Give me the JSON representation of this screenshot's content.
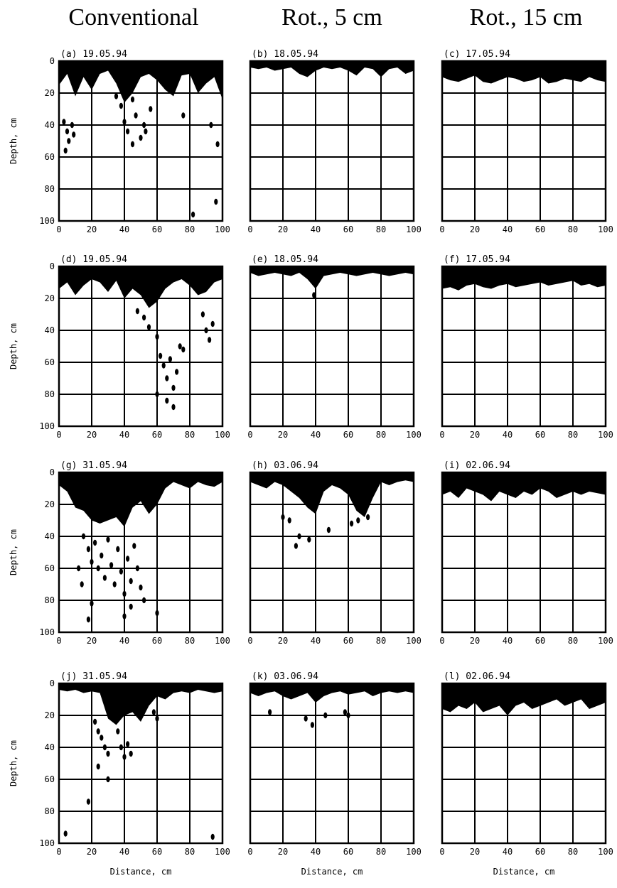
{
  "column_titles": [
    "Conventional",
    "Rot., 5 cm",
    "Rot., 15 cm"
  ],
  "chart_data": {
    "type": "heatmap",
    "description_axes": {
      "xlabel": "Distance, cm",
      "ylabel": "Depth, cm"
    },
    "xlim": [
      0,
      100
    ],
    "ylim": [
      0,
      100
    ],
    "x_ticks": [
      0,
      20,
      40,
      60,
      80,
      100
    ],
    "y_ticks": [
      0,
      20,
      40,
      60,
      80,
      100
    ],
    "panels": [
      {
        "id": "a",
        "label": "(a) 19.05.94",
        "treatment": "Conventional",
        "row": 0,
        "col": 0,
        "ylabel": "Depth, cm",
        "xlabel": "",
        "surface_depth": [
          15,
          8,
          22,
          10,
          18,
          8,
          6,
          14,
          26,
          20,
          10,
          8,
          12,
          18,
          22,
          9,
          8,
          20,
          14,
          10,
          24
        ],
        "stains": [
          [
            3,
            38
          ],
          [
            5,
            44
          ],
          [
            6,
            50
          ],
          [
            8,
            40
          ],
          [
            9,
            46
          ],
          [
            4,
            56
          ],
          [
            40,
            38
          ],
          [
            42,
            44
          ],
          [
            45,
            24
          ],
          [
            47,
            34
          ],
          [
            52,
            40
          ],
          [
            53,
            44
          ],
          [
            56,
            30
          ],
          [
            76,
            34
          ],
          [
            93,
            40
          ],
          [
            97,
            52
          ],
          [
            82,
            96
          ],
          [
            96,
            88
          ],
          [
            38,
            28
          ],
          [
            35,
            22
          ],
          [
            45,
            52
          ],
          [
            50,
            48
          ]
        ]
      },
      {
        "id": "b",
        "label": "(b) 18.05.94",
        "treatment": "Rot., 5 cm",
        "row": 0,
        "col": 1,
        "ylabel": "",
        "xlabel": "",
        "surface_depth": [
          4,
          5,
          4,
          6,
          5,
          4,
          8,
          10,
          6,
          4,
          5,
          4,
          6,
          9,
          4,
          5,
          10,
          5,
          4,
          8,
          6
        ],
        "stains": []
      },
      {
        "id": "c",
        "label": "(c) 17.05.94",
        "treatment": "Rot., 15 cm",
        "row": 0,
        "col": 2,
        "ylabel": "",
        "xlabel": "",
        "surface_depth": [
          10,
          12,
          13,
          11,
          9,
          13,
          14,
          12,
          10,
          11,
          13,
          12,
          10,
          14,
          13,
          11,
          12,
          13,
          10,
          12,
          13
        ],
        "stains": []
      },
      {
        "id": "d",
        "label": "(d) 19.05.94",
        "treatment": "Conventional",
        "row": 1,
        "col": 0,
        "ylabel": "Depth, cm",
        "xlabel": "",
        "surface_depth": [
          14,
          10,
          18,
          12,
          8,
          10,
          16,
          9,
          20,
          14,
          18,
          26,
          22,
          14,
          10,
          8,
          12,
          18,
          16,
          10,
          8
        ],
        "stains": [
          [
            48,
            28
          ],
          [
            52,
            32
          ],
          [
            55,
            38
          ],
          [
            60,
            44
          ],
          [
            62,
            56
          ],
          [
            64,
            62
          ],
          [
            66,
            70
          ],
          [
            68,
            58
          ],
          [
            70,
            76
          ],
          [
            72,
            66
          ],
          [
            74,
            50
          ],
          [
            66,
            84
          ],
          [
            88,
            30
          ],
          [
            90,
            40
          ],
          [
            92,
            46
          ],
          [
            94,
            36
          ],
          [
            60,
            80
          ],
          [
            70,
            88
          ],
          [
            76,
            52
          ]
        ]
      },
      {
        "id": "e",
        "label": "(e) 18.05.94",
        "treatment": "Rot., 5 cm",
        "row": 1,
        "col": 1,
        "ylabel": "",
        "xlabel": "",
        "surface_depth": [
          4,
          6,
          5,
          4,
          5,
          6,
          4,
          8,
          14,
          6,
          5,
          4,
          5,
          6,
          5,
          4,
          5,
          6,
          5,
          4,
          5
        ],
        "stains": [
          [
            39,
            18
          ]
        ]
      },
      {
        "id": "f",
        "label": "(f) 17.05.94",
        "treatment": "Rot., 15 cm",
        "row": 1,
        "col": 2,
        "ylabel": "",
        "xlabel": "",
        "surface_depth": [
          14,
          13,
          15,
          12,
          11,
          13,
          14,
          12,
          11,
          13,
          12,
          11,
          10,
          12,
          11,
          10,
          9,
          12,
          11,
          13,
          12
        ],
        "stains": []
      },
      {
        "id": "g",
        "label": "(g) 31.05.94",
        "treatment": "Conventional",
        "row": 2,
        "col": 0,
        "ylabel": "Depth, cm",
        "xlabel": "",
        "surface_depth": [
          8,
          12,
          22,
          24,
          30,
          32,
          30,
          28,
          34,
          22,
          18,
          26,
          20,
          10,
          6,
          8,
          10,
          6,
          8,
          9,
          6
        ],
        "stains": [
          [
            15,
            40
          ],
          [
            18,
            48
          ],
          [
            20,
            56
          ],
          [
            22,
            44
          ],
          [
            24,
            60
          ],
          [
            26,
            52
          ],
          [
            28,
            66
          ],
          [
            30,
            42
          ],
          [
            32,
            58
          ],
          [
            34,
            70
          ],
          [
            36,
            48
          ],
          [
            38,
            62
          ],
          [
            40,
            76
          ],
          [
            42,
            54
          ],
          [
            44,
            68
          ],
          [
            46,
            46
          ],
          [
            48,
            60
          ],
          [
            50,
            72
          ],
          [
            20,
            82
          ],
          [
            18,
            92
          ],
          [
            40,
            90
          ],
          [
            44,
            84
          ],
          [
            60,
            88
          ],
          [
            52,
            80
          ],
          [
            12,
            60
          ],
          [
            14,
            70
          ]
        ]
      },
      {
        "id": "h",
        "label": "(h) 03.06.94",
        "treatment": "Rot., 5 cm",
        "row": 2,
        "col": 1,
        "ylabel": "",
        "xlabel": "",
        "surface_depth": [
          6,
          8,
          10,
          6,
          8,
          12,
          16,
          22,
          26,
          12,
          8,
          10,
          14,
          24,
          28,
          16,
          6,
          8,
          6,
          5,
          6
        ],
        "stains": [
          [
            20,
            28
          ],
          [
            24,
            30
          ],
          [
            30,
            40
          ],
          [
            36,
            42
          ],
          [
            28,
            46
          ],
          [
            48,
            36
          ],
          [
            62,
            32
          ],
          [
            66,
            30
          ],
          [
            72,
            28
          ]
        ]
      },
      {
        "id": "i",
        "label": "(i) 02.06.94",
        "treatment": "Rot., 15 cm",
        "row": 2,
        "col": 2,
        "ylabel": "",
        "xlabel": "",
        "surface_depth": [
          14,
          12,
          16,
          10,
          12,
          14,
          18,
          12,
          14,
          16,
          12,
          14,
          10,
          12,
          16,
          14,
          12,
          14,
          12,
          13,
          14
        ],
        "stains": []
      },
      {
        "id": "j",
        "label": "(j) 31.05.94",
        "treatment": "Conventional",
        "row": 3,
        "col": 0,
        "ylabel": "Depth, cm",
        "xlabel": "Distance, cm",
        "surface_depth": [
          4,
          5,
          4,
          6,
          5,
          6,
          22,
          26,
          20,
          18,
          24,
          14,
          8,
          10,
          6,
          5,
          6,
          4,
          5,
          6,
          5
        ],
        "stains": [
          [
            22,
            24
          ],
          [
            24,
            30
          ],
          [
            26,
            34
          ],
          [
            28,
            40
          ],
          [
            30,
            44
          ],
          [
            24,
            52
          ],
          [
            38,
            40
          ],
          [
            40,
            46
          ],
          [
            42,
            38
          ],
          [
            44,
            44
          ],
          [
            52,
            10
          ],
          [
            58,
            18
          ],
          [
            60,
            22
          ],
          [
            18,
            74
          ],
          [
            4,
            94
          ],
          [
            94,
            96
          ],
          [
            30,
            60
          ],
          [
            36,
            30
          ]
        ]
      },
      {
        "id": "k",
        "label": "(k) 03.06.94",
        "treatment": "Rot., 5 cm",
        "row": 3,
        "col": 1,
        "ylabel": "",
        "xlabel": "Distance, cm",
        "surface_depth": [
          6,
          8,
          6,
          5,
          8,
          10,
          8,
          6,
          12,
          8,
          6,
          5,
          7,
          6,
          5,
          8,
          6,
          5,
          6,
          5,
          6
        ],
        "stains": [
          [
            12,
            18
          ],
          [
            34,
            22
          ],
          [
            38,
            26
          ],
          [
            46,
            20
          ],
          [
            58,
            18
          ],
          [
            60,
            20
          ]
        ]
      },
      {
        "id": "l",
        "label": "(l) 02.06.94",
        "treatment": "Rot., 15 cm",
        "row": 3,
        "col": 2,
        "ylabel": "",
        "xlabel": "Distance, cm",
        "surface_depth": [
          16,
          18,
          14,
          16,
          12,
          18,
          16,
          14,
          20,
          14,
          12,
          16,
          14,
          12,
          10,
          14,
          12,
          10,
          16,
          14,
          12
        ],
        "stains": []
      }
    ]
  }
}
